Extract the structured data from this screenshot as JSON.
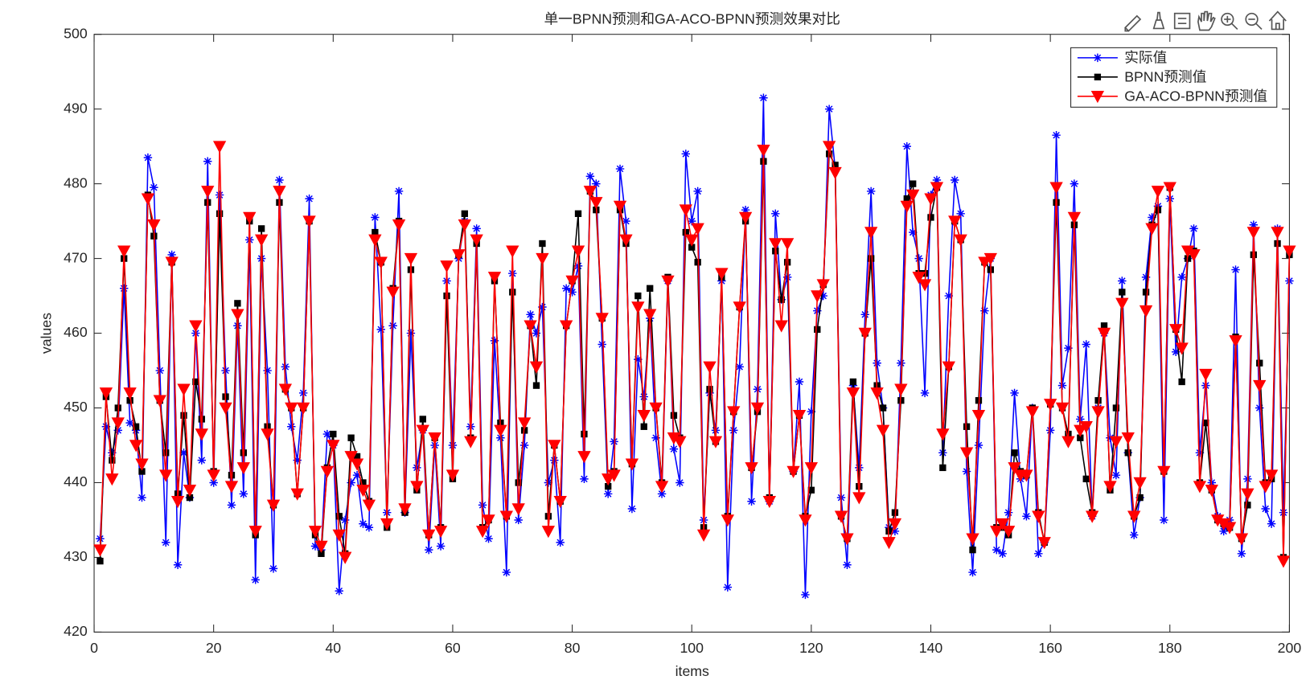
{
  "chart_data": {
    "type": "line",
    "title": "单一BPNN预测和GA-ACO-BPNN预测效果对比",
    "xlabel": "items",
    "ylabel": "values",
    "xlim": [
      0,
      200
    ],
    "xticks": [
      0,
      20,
      40,
      60,
      80,
      100,
      120,
      140,
      160,
      180,
      200
    ],
    "ylim": [
      420,
      500
    ],
    "yticks": [
      420,
      430,
      440,
      450,
      460,
      470,
      480,
      490,
      500
    ],
    "grid": false,
    "legend": "northeast",
    "x": [
      1,
      2,
      3,
      4,
      5,
      6,
      7,
      8,
      9,
      10,
      11,
      12,
      13,
      14,
      15,
      16,
      17,
      18,
      19,
      20,
      21,
      22,
      23,
      24,
      25,
      26,
      27,
      28,
      29,
      30,
      31,
      32,
      33,
      34,
      35,
      36,
      37,
      38,
      39,
      40,
      41,
      42,
      43,
      44,
      45,
      46,
      47,
      48,
      49,
      50,
      51,
      52,
      53,
      54,
      55,
      56,
      57,
      58,
      59,
      60,
      61,
      62,
      63,
      64,
      65,
      66,
      67,
      68,
      69,
      70,
      71,
      72,
      73,
      74,
      75,
      76,
      77,
      78,
      79,
      80,
      81,
      82,
      83,
      84,
      85,
      86,
      87,
      88,
      89,
      90,
      91,
      92,
      93,
      94,
      95,
      96,
      97,
      98,
      99,
      100,
      101,
      102,
      103,
      104,
      105,
      106,
      107,
      108,
      109,
      110,
      111,
      112,
      113,
      114,
      115,
      116,
      117,
      118,
      119,
      120,
      121,
      122,
      123,
      124,
      125,
      126,
      127,
      128,
      129,
      130,
      131,
      132,
      133,
      134,
      135,
      136,
      137,
      138,
      139,
      140,
      141,
      142,
      143,
      144,
      145,
      146,
      147,
      148,
      149,
      150,
      151,
      152,
      153,
      154,
      155,
      156,
      157,
      158,
      159,
      160,
      161,
      162,
      163,
      164,
      165,
      166,
      167,
      168,
      169,
      170,
      171,
      172,
      173,
      174,
      175,
      176,
      177,
      178,
      179,
      180,
      181,
      182,
      183,
      184,
      185,
      186,
      187,
      188,
      189,
      190,
      191,
      192,
      193,
      194,
      195,
      196,
      197,
      198,
      199,
      200
    ],
    "series": [
      {
        "name": "实际值",
        "color": "#0000ff",
        "marker": "asterisk",
        "values": [
          432.5,
          447.5,
          444,
          447,
          466,
          448,
          447,
          438,
          483.5,
          479.5,
          455,
          432,
          470.5,
          429,
          444,
          438,
          460,
          443,
          483,
          440,
          478.5,
          455,
          437,
          461,
          438.5,
          472.5,
          427,
          470,
          455,
          428.5,
          480.5,
          455.5,
          447.5,
          443,
          452,
          478,
          431.5,
          431,
          446.5,
          445,
          425.5,
          435,
          440,
          441,
          434.5,
          434,
          475.5,
          460.5,
          436,
          461,
          479,
          436,
          460,
          442,
          447,
          431,
          445,
          431.5,
          467,
          445,
          470,
          475,
          447.5,
          474,
          437,
          432.5,
          459,
          446,
          428,
          468,
          435,
          445,
          462.5,
          460,
          463.5,
          440,
          443,
          432,
          466,
          465.5,
          469,
          440.5,
          481,
          480,
          458.5,
          438.5,
          445.5,
          482,
          475,
          436.5,
          456.5,
          451.5,
          462,
          446,
          438.5,
          467,
          444.5,
          440,
          484,
          475,
          479,
          435,
          452,
          447,
          467,
          426,
          447,
          455.5,
          476.5,
          437.5,
          452.5,
          491.5,
          437.5,
          476,
          464.5,
          467.5,
          441.5,
          453.5,
          425,
          449.5,
          463,
          465,
          490,
          482,
          438,
          429,
          453,
          442,
          462.5,
          479,
          456,
          450,
          434,
          433.5,
          456,
          485,
          473.5,
          470,
          452,
          478.5,
          480.5,
          444,
          465,
          480.5,
          476,
          441.5,
          428,
          445,
          463,
          470,
          431,
          430.5,
          436,
          452,
          440.5,
          435.5,
          450,
          430.5,
          432,
          447,
          486.5,
          453,
          458,
          480,
          448.5,
          458.5,
          435.5,
          450,
          460,
          446,
          441,
          467,
          444,
          433,
          438,
          467.5,
          475.5,
          477,
          435,
          478,
          457.5,
          467.5,
          470,
          474,
          444,
          453,
          440,
          435.5,
          433.5,
          435,
          468.5,
          430.5,
          440.5,
          474.5,
          450,
          436.5,
          434.5,
          474,
          436,
          467
        ]
      },
      {
        "name": "BPNN预测值",
        "color": "#000000",
        "marker": "square",
        "values": [
          429.5,
          451.5,
          443,
          450,
          470,
          451,
          447.5,
          441.5,
          478.5,
          473,
          451,
          444,
          469.5,
          438.5,
          449,
          438,
          453.5,
          448.5,
          477.5,
          441.5,
          476,
          451.5,
          441,
          464,
          444,
          475,
          433,
          474,
          447.5,
          437,
          477.5,
          452.5,
          450,
          438.5,
          450,
          475,
          433,
          430.5,
          442,
          446.5,
          435.5,
          430.5,
          446,
          443.5,
          440,
          437.5,
          473.5,
          469.5,
          434,
          466,
          475,
          436,
          468.5,
          439,
          448.5,
          433,
          446,
          434,
          465,
          440.5,
          470.5,
          476,
          446,
          472,
          434,
          435,
          467,
          448,
          435.5,
          465.5,
          440,
          447,
          461,
          453,
          472,
          435.5,
          445,
          437.5,
          461,
          467,
          476,
          446.5,
          479,
          476.5,
          462,
          439.5,
          441.5,
          476.5,
          472,
          442.5,
          465,
          447.5,
          466,
          450,
          440,
          467.5,
          449,
          446,
          473.5,
          471.5,
          469.5,
          434,
          452.5,
          445.5,
          467.5,
          435.5,
          449.5,
          463.5,
          475,
          442,
          449.5,
          483,
          438,
          471,
          464.5,
          469.5,
          441.5,
          449,
          435.5,
          439,
          460.5,
          466.5,
          484,
          482.5,
          435.5,
          432.5,
          453.5,
          439.5,
          460,
          470,
          453,
          450,
          433.5,
          436,
          451,
          478,
          480,
          468,
          468,
          475.5,
          479.5,
          442,
          455.5,
          475,
          472.5,
          447.5,
          431,
          451,
          469.5,
          468.5,
          434,
          434,
          433,
          444,
          441.5,
          441,
          450,
          436,
          432,
          450.5,
          477.5,
          450,
          446.5,
          474.5,
          446,
          440.5,
          436,
          451,
          461,
          439,
          450,
          465.5,
          444,
          435.5,
          438,
          465.5,
          474.5,
          476.5,
          441.5,
          479.5,
          460.5,
          453.5,
          470,
          471,
          440,
          448,
          439,
          435,
          434.5,
          434,
          459.5,
          432.5,
          437,
          470.5,
          456,
          440,
          440.5,
          472,
          430,
          470.5
        ]
      },
      {
        "name": "GA-ACO-BPNN预测值",
        "color": "#ff0000",
        "marker": "triangle-down",
        "values": [
          431,
          452,
          440.5,
          448,
          471,
          452,
          445,
          442.5,
          478,
          474.5,
          451,
          441,
          469.5,
          437.5,
          452.5,
          439,
          461,
          446.5,
          479,
          441,
          485,
          450,
          439.5,
          462.5,
          442,
          475.5,
          433.5,
          472.5,
          446.5,
          437,
          479,
          452.5,
          450,
          438.5,
          450,
          475,
          433.5,
          431.5,
          441.5,
          445,
          433,
          430,
          443.5,
          442.5,
          439,
          437,
          472.5,
          469.5,
          434.5,
          465.5,
          474.5,
          436.5,
          470,
          439.5,
          447,
          433,
          446,
          433.5,
          469,
          441,
          470.5,
          474.5,
          445.5,
          472.5,
          433.5,
          435,
          467.5,
          447,
          435.5,
          471,
          436.5,
          448,
          461,
          455.5,
          470,
          433.5,
          445,
          437.5,
          461,
          467,
          471,
          443.5,
          479,
          477.5,
          462,
          440.5,
          441,
          477,
          472.5,
          442.5,
          463.5,
          449,
          462.5,
          450,
          439.5,
          467,
          446,
          445.5,
          476.5,
          472.5,
          474,
          433,
          455.5,
          445.5,
          468,
          435,
          449.5,
          463.5,
          475.5,
          442,
          450,
          484.5,
          437.5,
          472,
          461,
          472,
          441.5,
          449,
          435,
          442,
          465,
          466.5,
          485,
          481.5,
          435.5,
          432.5,
          452,
          438,
          460,
          473.5,
          452,
          447,
          432,
          434.5,
          452.5,
          477,
          478.5,
          467.5,
          466.5,
          478,
          479.5,
          446.5,
          455.5,
          475,
          472.5,
          444,
          432.5,
          449,
          469.5,
          470,
          433.5,
          434.5,
          433.5,
          442,
          441,
          441,
          449.5,
          435.5,
          432,
          450.5,
          479.5,
          450,
          445.5,
          475.5,
          447,
          447.5,
          435.5,
          449.5,
          460,
          439.5,
          445.5,
          464,
          446,
          435.5,
          440,
          463,
          474,
          479,
          441.5,
          479.5,
          460.5,
          458,
          471,
          470.5,
          439.5,
          454.5,
          439,
          435,
          434.5,
          434,
          459,
          432.5,
          438.5,
          473.5,
          453,
          439.5,
          441,
          473.5,
          429.5,
          471
        ]
      }
    ]
  }
}
